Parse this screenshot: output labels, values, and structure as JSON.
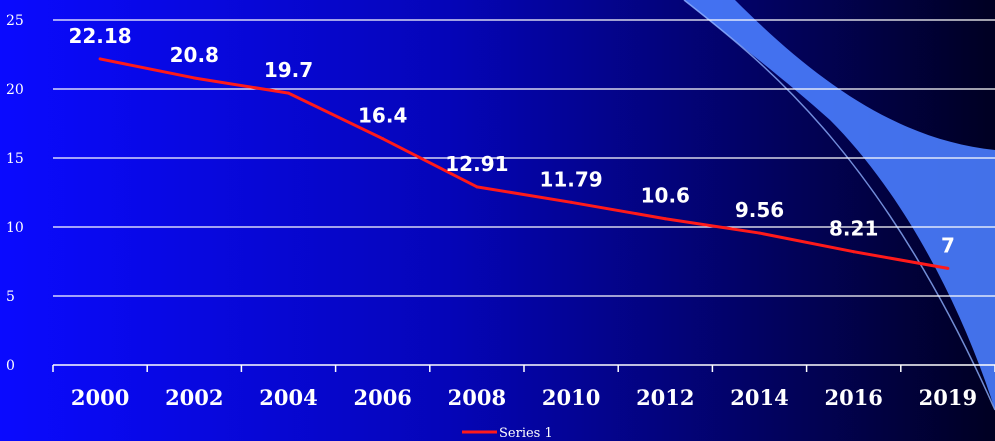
{
  "chart_data": {
    "type": "line",
    "categories": [
      "2000",
      "2002",
      "2004",
      "2006",
      "2008",
      "2010",
      "2012",
      "2014",
      "2016",
      "2019"
    ],
    "series": [
      {
        "name": "Series 1",
        "values": [
          22.18,
          20.8,
          19.7,
          16.4,
          12.91,
          11.79,
          10.6,
          9.56,
          8.21,
          7
        ],
        "color": "#ff1a1a"
      }
    ],
    "data_labels": [
      "22.18",
      "20.8",
      "19.7",
      "16.4",
      "12.91",
      "11.79",
      "10.6",
      "9.56",
      "8.21",
      "7"
    ],
    "y_ticks": [
      "0",
      "5",
      "10",
      "15",
      "20",
      "25"
    ],
    "ylim": [
      0,
      25
    ],
    "grid": true,
    "legend": {
      "position": "bottom",
      "label": "Series 1"
    },
    "colors": {
      "background_left": "#0a0aff",
      "background_right": "#000033",
      "gridline": "#ffffff",
      "axis": "#ffffff",
      "wave": "#4a7dff",
      "text": "#ffffff"
    }
  }
}
